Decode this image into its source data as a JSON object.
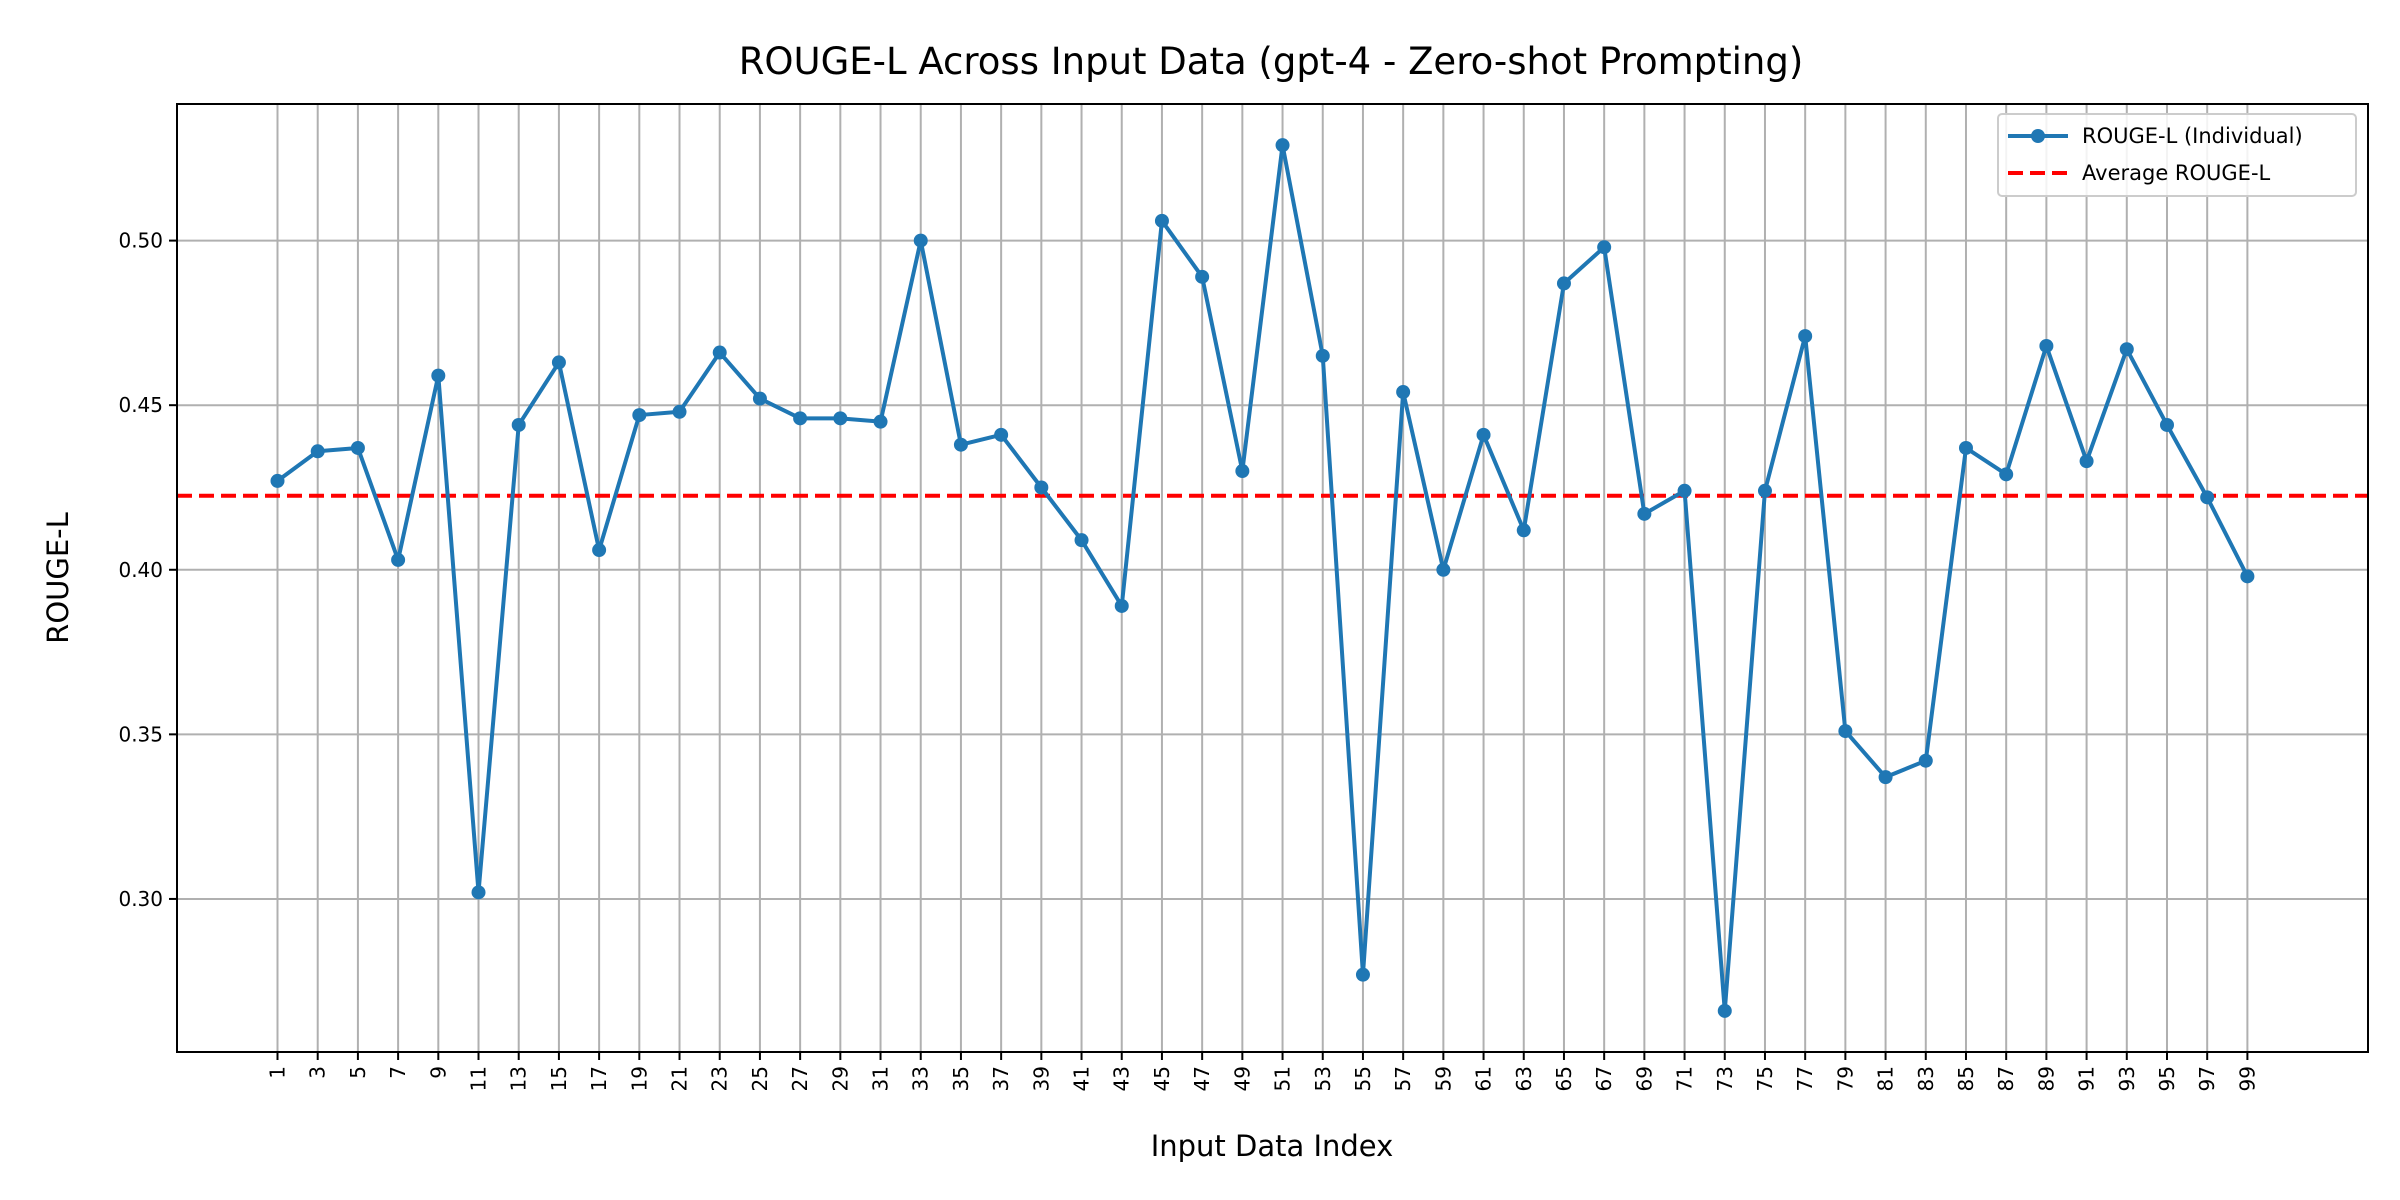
{
  "chart_data": {
    "type": "line",
    "title": "ROUGE-L Across Input Data (gpt-4 - Zero-shot Prompting)",
    "xlabel": "Input Data Index",
    "ylabel": "ROUGE-L",
    "x": [
      1,
      3,
      5,
      7,
      9,
      11,
      13,
      15,
      17,
      19,
      21,
      23,
      25,
      27,
      29,
      31,
      33,
      35,
      37,
      39,
      41,
      43,
      45,
      47,
      49,
      51,
      53,
      55,
      57,
      59,
      61,
      63,
      65,
      67,
      69,
      71,
      73,
      75,
      77,
      79,
      81,
      83,
      85,
      87,
      89,
      91,
      93,
      95,
      97,
      99
    ],
    "x_tick_labels": [
      "1",
      "3",
      "5",
      "7",
      "9",
      "11",
      "13",
      "15",
      "17",
      "19",
      "21",
      "23",
      "25",
      "27",
      "29",
      "31",
      "33",
      "35",
      "37",
      "39",
      "41",
      "43",
      "45",
      "47",
      "49",
      "51",
      "53",
      "55",
      "57",
      "59",
      "61",
      "63",
      "65",
      "67",
      "69",
      "71",
      "73",
      "75",
      "77",
      "79",
      "81",
      "83",
      "85",
      "87",
      "89",
      "91",
      "93",
      "95",
      "97",
      "99"
    ],
    "series": [
      {
        "name": "ROUGE-L (Individual)",
        "color": "#1f77b4",
        "marker": "circle",
        "values": [
          0.427,
          0.436,
          0.437,
          0.403,
          0.459,
          0.302,
          0.444,
          0.463,
          0.406,
          0.447,
          0.448,
          0.466,
          0.452,
          0.446,
          0.446,
          0.445,
          0.5,
          0.438,
          0.441,
          0.425,
          0.409,
          0.389,
          0.506,
          0.489,
          0.43,
          0.529,
          0.465,
          0.277,
          0.454,
          0.4,
          0.441,
          0.412,
          0.487,
          0.498,
          0.417,
          0.424,
          0.266,
          0.424,
          0.471,
          0.351,
          0.337,
          0.342,
          0.437,
          0.429,
          0.468,
          0.433,
          0.467,
          0.444,
          0.422,
          0.398
        ]
      }
    ],
    "average": {
      "name": "Average ROUGE-L",
      "value": 0.4225,
      "color": "#ff0000",
      "style": "dashed"
    },
    "xlim": [
      -4,
      105
    ],
    "ylim": [
      0.2535,
      0.5415
    ],
    "y_ticks": [
      0.3,
      0.35,
      0.4,
      0.45,
      0.5
    ],
    "y_tick_labels": [
      "0.30",
      "0.35",
      "0.40",
      "0.45",
      "0.50"
    ],
    "grid": true,
    "legend_position": "top-right"
  }
}
